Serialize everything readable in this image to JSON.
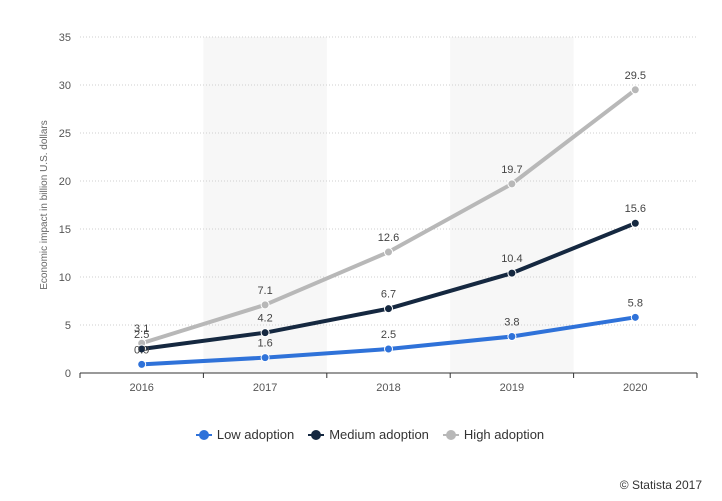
{
  "chart_data": {
    "type": "line",
    "categories": [
      "2016",
      "2017",
      "2018",
      "2019",
      "2020"
    ],
    "ylabel": "Economic impact in billion U.S. dollars",
    "ylim": [
      0,
      35
    ],
    "yticks": [
      0,
      5,
      10,
      15,
      20,
      25,
      30,
      35
    ],
    "grid": true,
    "legend_position": "bottom",
    "series": [
      {
        "name": "Low adoption",
        "color": "#2f72d9",
        "values": [
          0.9,
          1.6,
          2.5,
          3.8,
          5.8
        ],
        "labels": [
          "0.9",
          "1.6",
          "2.5",
          "3.8",
          "5.8"
        ]
      },
      {
        "name": "Medium adoption",
        "color": "#152840",
        "values": [
          2.5,
          4.2,
          6.7,
          10.4,
          15.6
        ],
        "labels": [
          "2.5",
          "4.2",
          "6.7",
          "10.4",
          "15.6"
        ]
      },
      {
        "name": "High adoption",
        "color": "#b8b8b8",
        "values": [
          3.1,
          7.1,
          12.6,
          19.7,
          29.5
        ],
        "labels": [
          "3.1",
          "7.1",
          "12.6",
          "19.7",
          "29.5"
        ]
      }
    ]
  },
  "credit": "© Statista 2017"
}
